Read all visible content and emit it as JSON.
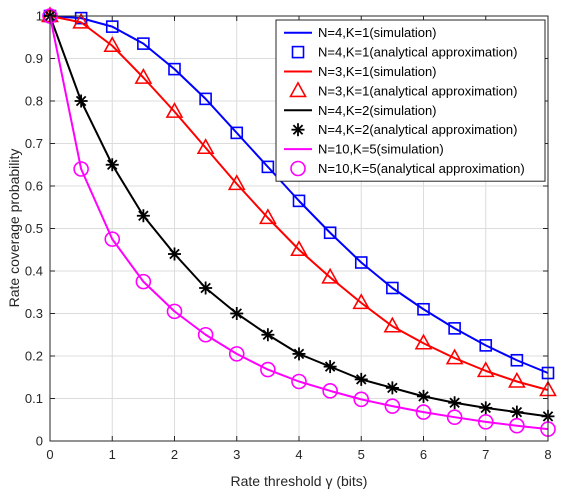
{
  "chart_data": {
    "type": "line",
    "xlabel": "Rate threshold γ (bits)",
    "ylabel": "Rate coverage probability",
    "xlim": [
      0,
      8
    ],
    "ylim": [
      0,
      1
    ],
    "xticks": [
      0,
      1,
      2,
      3,
      4,
      5,
      6,
      7,
      8
    ],
    "yticks": [
      0,
      0.1,
      0.2,
      0.3,
      0.4,
      0.5,
      0.6,
      0.7,
      0.8,
      0.9,
      1
    ],
    "grid": true,
    "legend_position": "top-right",
    "x": [
      0,
      0.5,
      1,
      1.5,
      2,
      2.5,
      3,
      3.5,
      4,
      4.5,
      5,
      5.5,
      6,
      6.5,
      7,
      7.5,
      8
    ],
    "series": [
      {
        "name": "N=4,K=1(simulation)",
        "style": "line",
        "color": "#0000ff",
        "values": [
          1.0,
          0.995,
          0.975,
          0.935,
          0.875,
          0.805,
          0.725,
          0.645,
          0.565,
          0.49,
          0.42,
          0.36,
          0.31,
          0.265,
          0.225,
          0.19,
          0.16
        ]
      },
      {
        "name": "N=4,K=1(analytical approximation)",
        "style": "marker",
        "marker": "square",
        "color": "#0000ff",
        "values": [
          1.0,
          0.995,
          0.975,
          0.935,
          0.875,
          0.805,
          0.725,
          0.645,
          0.565,
          0.49,
          0.42,
          0.36,
          0.31,
          0.265,
          0.225,
          0.19,
          0.16
        ]
      },
      {
        "name": "N=3,K=1(simulation)",
        "style": "line",
        "color": "#ff0000",
        "values": [
          1.0,
          0.985,
          0.93,
          0.855,
          0.775,
          0.69,
          0.605,
          0.525,
          0.45,
          0.385,
          0.325,
          0.27,
          0.23,
          0.195,
          0.165,
          0.14,
          0.12
        ]
      },
      {
        "name": "N=3,K=1(analytical approximation)",
        "style": "marker",
        "marker": "triangle",
        "color": "#ff0000",
        "values": [
          1.0,
          0.985,
          0.93,
          0.855,
          0.775,
          0.69,
          0.605,
          0.525,
          0.45,
          0.385,
          0.325,
          0.27,
          0.23,
          0.195,
          0.165,
          0.14,
          0.12
        ]
      },
      {
        "name": "N=4,K=2(simulation)",
        "style": "line",
        "color": "#000000",
        "values": [
          1.0,
          0.8,
          0.65,
          0.53,
          0.44,
          0.36,
          0.3,
          0.25,
          0.205,
          0.175,
          0.145,
          0.125,
          0.105,
          0.09,
          0.078,
          0.068,
          0.058
        ]
      },
      {
        "name": "N=4,K=2(analytical approximation)",
        "style": "marker",
        "marker": "asterisk",
        "color": "#000000",
        "values": [
          1.0,
          0.8,
          0.65,
          0.53,
          0.44,
          0.36,
          0.3,
          0.25,
          0.205,
          0.175,
          0.145,
          0.125,
          0.105,
          0.09,
          0.078,
          0.068,
          0.058
        ]
      },
      {
        "name": "N=10,K=5(simulation)",
        "style": "line",
        "color": "#ff00ff",
        "values": [
          1.0,
          0.64,
          0.475,
          0.375,
          0.305,
          0.25,
          0.205,
          0.168,
          0.14,
          0.118,
          0.098,
          0.082,
          0.068,
          0.056,
          0.045,
          0.036,
          0.028
        ]
      },
      {
        "name": "N=10,K=5(analytical approximation)",
        "style": "marker",
        "marker": "circle",
        "color": "#ff00ff",
        "values": [
          1.0,
          0.64,
          0.475,
          0.375,
          0.305,
          0.25,
          0.205,
          0.168,
          0.14,
          0.118,
          0.098,
          0.082,
          0.068,
          0.056,
          0.045,
          0.036,
          0.028
        ]
      }
    ]
  }
}
